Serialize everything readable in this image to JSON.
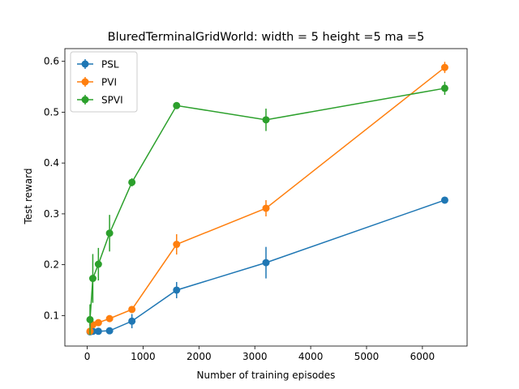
{
  "chart_data": {
    "type": "line",
    "title": "BluredTerminalGridWorld: width = 5 height =5 ma =5",
    "xlabel": "Number of training episodes",
    "ylabel": "Test reward",
    "xlim": [
      -400,
      6800
    ],
    "ylim": [
      0.04,
      0.625
    ],
    "xticks": [
      0,
      1000,
      2000,
      3000,
      4000,
      5000,
      6000
    ],
    "yticks": [
      0.1,
      0.2,
      0.3,
      0.4,
      0.5,
      0.6
    ],
    "grid": false,
    "legend_position": "top-left",
    "series": [
      {
        "name": "PSL",
        "color": "#1f77b4",
        "x": [
          50,
          100,
          200,
          400,
          800,
          1600,
          3200,
          6400
        ],
        "y": [
          0.068,
          0.069,
          0.069,
          0.07,
          0.089,
          0.15,
          0.204,
          0.327
        ],
        "err": [
          0.004,
          0.003,
          0.003,
          0.004,
          0.014,
          0.016,
          0.031,
          0.005
        ]
      },
      {
        "name": "PVI",
        "color": "#ff7f0e",
        "x": [
          50,
          100,
          200,
          400,
          800,
          1600,
          3200,
          6400
        ],
        "y": [
          0.069,
          0.082,
          0.086,
          0.094,
          0.112,
          0.24,
          0.311,
          0.588
        ],
        "err": [
          0.004,
          0.005,
          0.005,
          0.004,
          0.005,
          0.02,
          0.016,
          0.011
        ]
      },
      {
        "name": "SPVI",
        "color": "#2ca02c",
        "x": [
          50,
          100,
          200,
          400,
          800,
          1600,
          3200,
          6400
        ],
        "y": [
          0.092,
          0.173,
          0.201,
          0.262,
          0.362,
          0.513,
          0.485,
          0.547
        ],
        "err": [
          0.03,
          0.048,
          0.032,
          0.036,
          0.008,
          0.006,
          0.022,
          0.013
        ]
      }
    ]
  }
}
